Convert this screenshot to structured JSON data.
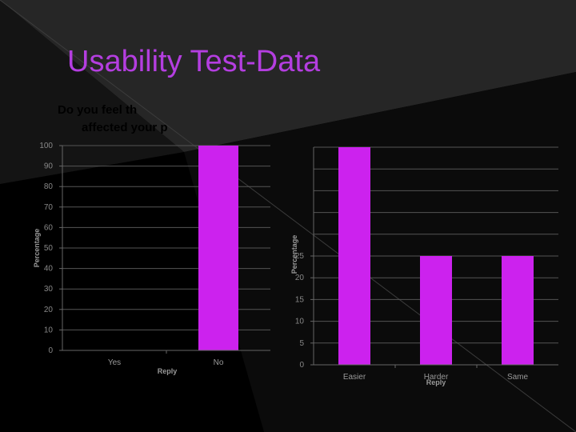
{
  "slide": {
    "title": "Usability Test-Data",
    "accent_color": "#b43ee0",
    "bar_color": "#cc22ee"
  },
  "chart_data": [
    {
      "type": "bar",
      "title_lines": [
        "Do you feel th",
        "affected your p"
      ],
      "categories": [
        "Yes",
        "No"
      ],
      "values": [
        0,
        100
      ],
      "xlabel": "Reply",
      "ylabel": "Percentage",
      "ylim": [
        0,
        100
      ],
      "yticks": [
        0,
        10,
        20,
        30,
        40,
        50,
        60,
        70,
        80,
        90,
        100
      ],
      "grid": true
    },
    {
      "type": "bar",
      "categories": [
        "Easier",
        "Harder",
        "Same"
      ],
      "values": [
        50,
        25,
        25
      ],
      "xlabel": "Reply",
      "ylabel": "Percentage",
      "ylim": [
        0,
        50
      ],
      "yticks": [
        0,
        5,
        10,
        15,
        20,
        25
      ],
      "grid": true
    }
  ]
}
